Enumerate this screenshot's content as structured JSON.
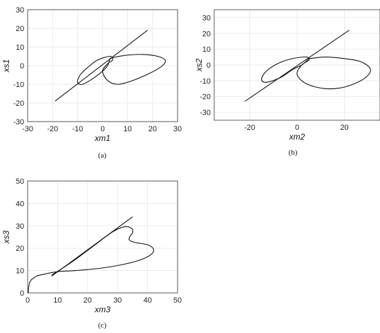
{
  "chart_data": [
    {
      "id": "a",
      "type": "line",
      "caption": "(a)",
      "xlabel": "xm1",
      "ylabel": "xs1",
      "xlim": [
        -30,
        30
      ],
      "ylim": [
        -30,
        30
      ],
      "xticks": [
        -30,
        -20,
        -10,
        0,
        10,
        20,
        30
      ],
      "yticks": [
        -30,
        -20,
        -10,
        0,
        10,
        20,
        30
      ],
      "grid": true,
      "series": [
        {
          "values": [
            [
              -19,
              -19
            ],
            [
              18,
              19
            ]
          ]
        },
        {
          "values": [
            [
              3,
              4
            ],
            [
              9,
              5.5
            ],
            [
              16,
              6
            ],
            [
              22,
              5
            ],
            [
              25,
              3
            ],
            [
              24,
              0
            ],
            [
              19,
              -4
            ],
            [
              12,
              -8
            ],
            [
              6,
              -10
            ],
            [
              2,
              -8
            ],
            [
              0,
              -3
            ],
            [
              2,
              1
            ],
            [
              4,
              3
            ],
            [
              3,
              5
            ],
            [
              -2,
              3
            ],
            [
              -6,
              -1
            ],
            [
              -9,
              -5
            ],
            [
              -10,
              -9
            ],
            [
              -8,
              -10
            ],
            [
              -4,
              -7
            ],
            [
              0,
              -3
            ],
            [
              2,
              0
            ],
            [
              3,
              4
            ]
          ]
        }
      ]
    },
    {
      "id": "b",
      "type": "line",
      "caption": "(b)",
      "xlabel": "xm2",
      "ylabel": "xs2",
      "xlim": [
        -35,
        35
      ],
      "ylim": [
        -35,
        35
      ],
      "xticks": [
        -20,
        0,
        20
      ],
      "yticks": [
        -30,
        -20,
        -10,
        0,
        10,
        20,
        30
      ],
      "grid": true,
      "series": [
        {
          "values": [
            [
              -22,
              -23
            ],
            [
              22,
              22
            ]
          ]
        },
        {
          "values": [
            [
              5,
              4
            ],
            [
              12,
              5
            ],
            [
              20,
              4
            ],
            [
              27,
              2
            ],
            [
              31,
              -3
            ],
            [
              28,
              -9
            ],
            [
              20,
              -14
            ],
            [
              12,
              -15
            ],
            [
              4,
              -12
            ],
            [
              0,
              -6
            ],
            [
              2,
              0
            ],
            [
              5,
              3
            ],
            [
              4,
              5
            ],
            [
              -2,
              4
            ],
            [
              -8,
              1
            ],
            [
              -13,
              -4
            ],
            [
              -15,
              -9
            ],
            [
              -13,
              -11
            ],
            [
              -7,
              -8
            ],
            [
              -2,
              -3
            ],
            [
              2,
              0
            ],
            [
              5,
              4
            ]
          ]
        }
      ]
    },
    {
      "id": "c",
      "type": "line",
      "caption": "(c)",
      "xlabel": "xm3",
      "ylabel": "xs3",
      "xlim": [
        0,
        50
      ],
      "ylim": [
        0,
        50
      ],
      "xticks": [
        0,
        10,
        20,
        30,
        40,
        50
      ],
      "yticks": [
        0,
        10,
        20,
        30,
        40,
        50
      ],
      "grid": true,
      "series": [
        {
          "values": [
            [
              8,
              7.5
            ],
            [
              35,
              34
            ]
          ]
        },
        {
          "values": [
            [
              0.2,
              0
            ],
            [
              0.4,
              3
            ],
            [
              1,
              5.5
            ],
            [
              3,
              7.5
            ],
            [
              6,
              8.5
            ],
            [
              10,
              9.5
            ],
            [
              16,
              10
            ],
            [
              24,
              11
            ],
            [
              31,
              12.5
            ],
            [
              37,
              14.5
            ],
            [
              41,
              17
            ],
            [
              42,
              19.5
            ],
            [
              40,
              21.5
            ],
            [
              36,
              22.5
            ],
            [
              34,
              23.5
            ],
            [
              34,
              25
            ],
            [
              35,
              27
            ],
            [
              34.5,
              29
            ],
            [
              32,
              29.5
            ],
            [
              28,
              27
            ],
            [
              22,
              21
            ],
            [
              16,
              15
            ],
            [
              11,
              10.5
            ],
            [
              8,
              8
            ]
          ]
        }
      ]
    }
  ]
}
